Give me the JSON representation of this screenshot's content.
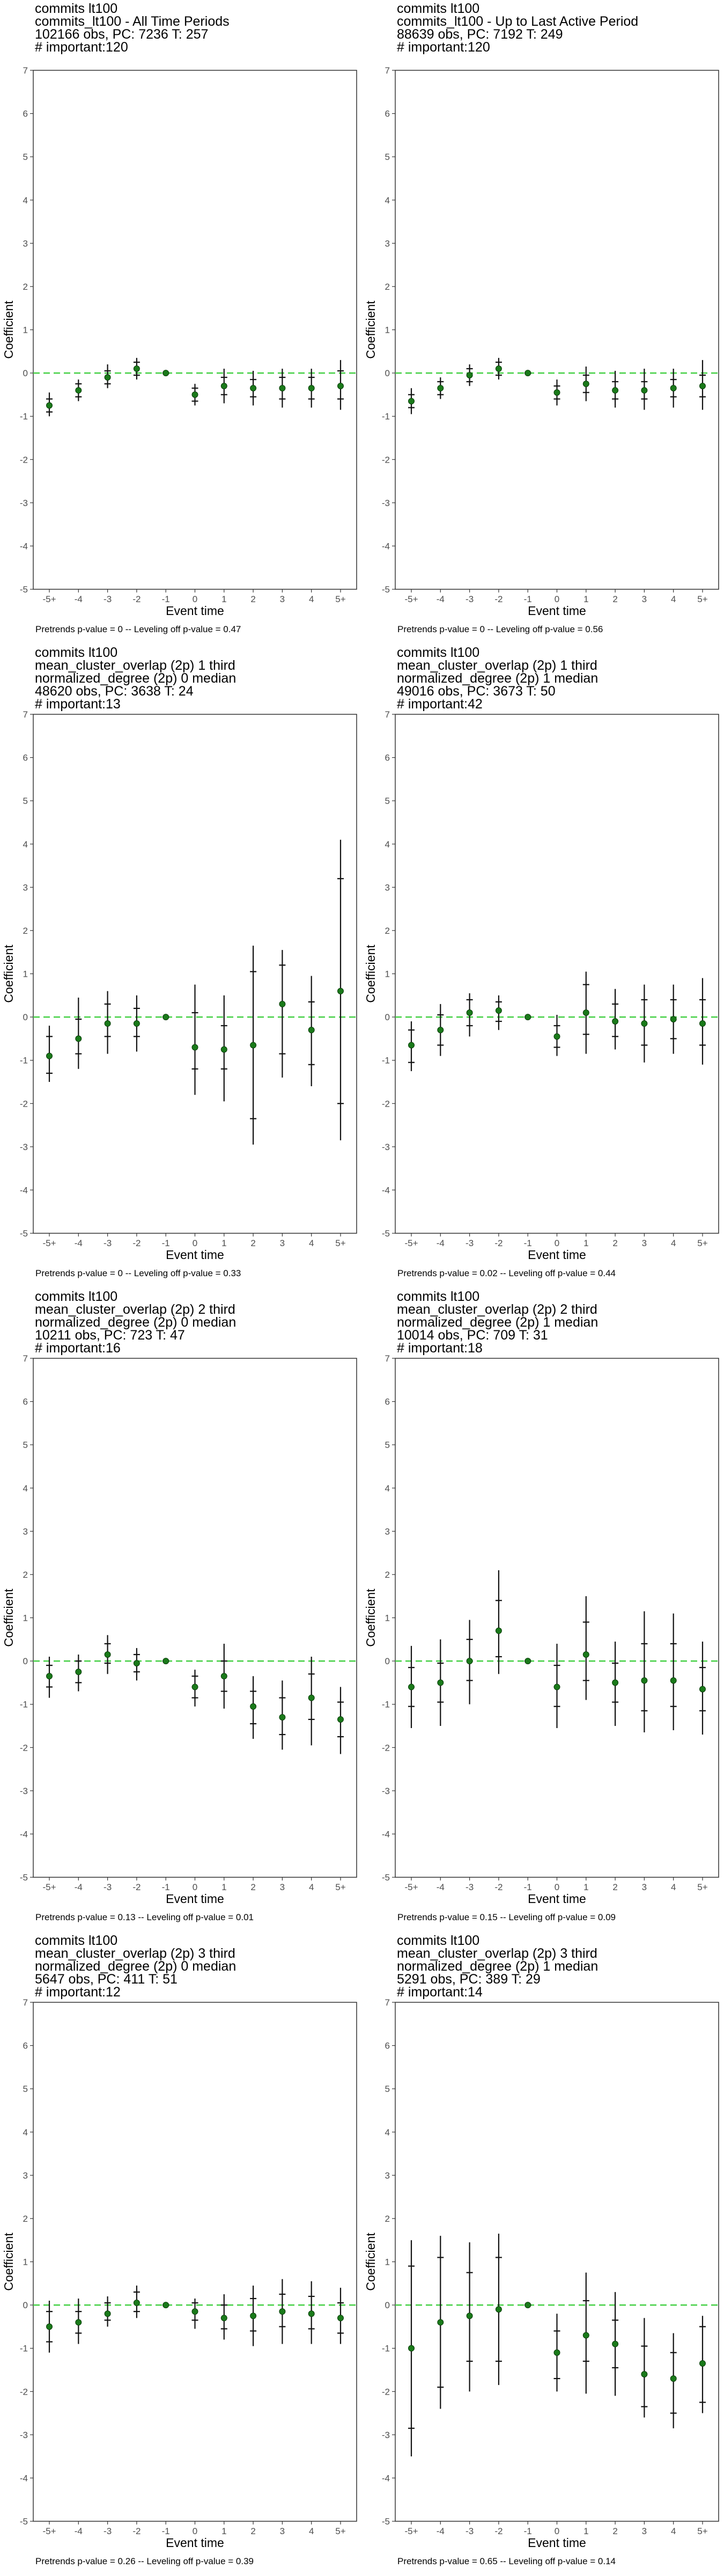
{
  "chart_data": [
    {
      "type": "scatter",
      "title_lines": [
        "commits lt100",
        "commits_lt100 - All Time Periods",
        "102166 obs, PC: 7236 T: 257",
        "# important:120"
      ],
      "xlabel": "Event time",
      "ylabel": "Coefficient",
      "categories": [
        "-5+",
        "-4",
        "-3",
        "-2",
        "-1",
        "0",
        "1",
        "2",
        "3",
        "4",
        "5+"
      ],
      "ylim": [
        -5,
        7
      ],
      "yticks": [
        "-5",
        "-4",
        "-3",
        "-2",
        "-1",
        "0",
        "1",
        "2",
        "3",
        "4",
        "5",
        "6",
        "7"
      ],
      "reference_line": 0,
      "estimates": [
        -0.75,
        -0.4,
        -0.1,
        0.1,
        0.0,
        -0.5,
        -0.3,
        -0.35,
        -0.35,
        -0.35,
        -0.3
      ],
      "ci_outer": [
        [
          -1.0,
          -0.45
        ],
        [
          -0.65,
          -0.15
        ],
        [
          -0.35,
          0.2
        ],
        [
          -0.15,
          0.35
        ],
        [
          0,
          0
        ],
        [
          -0.75,
          -0.25
        ],
        [
          -0.7,
          0.1
        ],
        [
          -0.75,
          0.05
        ],
        [
          -0.8,
          0.1
        ],
        [
          -0.8,
          0.1
        ],
        [
          -0.85,
          0.3
        ]
      ],
      "ci_inner": [
        [
          -0.9,
          -0.6
        ],
        [
          -0.55,
          -0.25
        ],
        [
          -0.25,
          0.05
        ],
        [
          -0.05,
          0.25
        ],
        [
          0,
          0
        ],
        [
          -0.65,
          -0.35
        ],
        [
          -0.5,
          -0.1
        ],
        [
          -0.55,
          -0.15
        ],
        [
          -0.6,
          -0.1
        ],
        [
          -0.6,
          -0.1
        ],
        [
          -0.6,
          0.05
        ]
      ],
      "footer": "Pretrends p-value = 0 -- Leveling off p-value = 0.47"
    },
    {
      "type": "scatter",
      "title_lines": [
        "commits lt100",
        "commits_lt100 - Up to Last Active Period",
        "88639 obs, PC: 7192 T: 249",
        "# important:120"
      ],
      "xlabel": "Event time",
      "ylabel": "Coefficient",
      "categories": [
        "-5+",
        "-4",
        "-3",
        "-2",
        "-1",
        "0",
        "1",
        "2",
        "3",
        "4",
        "5+"
      ],
      "ylim": [
        -5,
        7
      ],
      "yticks": [
        "-5",
        "-4",
        "-3",
        "-2",
        "-1",
        "0",
        "1",
        "2",
        "3",
        "4",
        "5",
        "6",
        "7"
      ],
      "reference_line": 0,
      "estimates": [
        -0.65,
        -0.35,
        -0.05,
        0.1,
        0.0,
        -0.45,
        -0.25,
        -0.4,
        -0.4,
        -0.35,
        -0.3
      ],
      "ci_outer": [
        [
          -0.95,
          -0.35
        ],
        [
          -0.6,
          -0.1
        ],
        [
          -0.3,
          0.2
        ],
        [
          -0.15,
          0.35
        ],
        [
          0,
          0
        ],
        [
          -0.75,
          -0.15
        ],
        [
          -0.65,
          0.15
        ],
        [
          -0.8,
          0.05
        ],
        [
          -0.85,
          0.1
        ],
        [
          -0.8,
          0.1
        ],
        [
          -0.85,
          0.3
        ]
      ],
      "ci_inner": [
        [
          -0.8,
          -0.5
        ],
        [
          -0.5,
          -0.2
        ],
        [
          -0.2,
          0.1
        ],
        [
          -0.05,
          0.25
        ],
        [
          0,
          0
        ],
        [
          -0.6,
          -0.3
        ],
        [
          -0.45,
          -0.05
        ],
        [
          -0.6,
          -0.2
        ],
        [
          -0.6,
          -0.2
        ],
        [
          -0.55,
          -0.15
        ],
        [
          -0.55,
          -0.05
        ]
      ],
      "footer": "Pretrends p-value = 0 -- Leveling off p-value = 0.56"
    },
    {
      "type": "scatter",
      "title_lines": [
        "commits lt100",
        "mean_cluster_overlap (2p) 1 third",
        "normalized_degree (2p) 0 median",
        "48620 obs, PC: 3638 T: 24",
        "# important:13"
      ],
      "xlabel": "Event time",
      "ylabel": "Coefficient",
      "categories": [
        "-5+",
        "-4",
        "-3",
        "-2",
        "-1",
        "0",
        "1",
        "2",
        "3",
        "4",
        "5+"
      ],
      "ylim": [
        -5,
        7
      ],
      "yticks": [
        "-5",
        "-4",
        "-3",
        "-2",
        "-1",
        "0",
        "1",
        "2",
        "3",
        "4",
        "5",
        "6",
        "7"
      ],
      "reference_line": 0,
      "estimates": [
        -0.9,
        -0.5,
        -0.15,
        -0.15,
        0.0,
        -0.7,
        -0.75,
        -0.65,
        0.3,
        -0.3,
        0.6
      ],
      "ci_outer": [
        [
          -1.5,
          -0.2
        ],
        [
          -1.2,
          0.45
        ],
        [
          -0.85,
          0.6
        ],
        [
          -0.8,
          0.5
        ],
        [
          0,
          0
        ],
        [
          -1.8,
          0.75
        ],
        [
          -1.95,
          0.5
        ],
        [
          -2.95,
          1.65
        ],
        [
          -1.4,
          1.55
        ],
        [
          -1.6,
          0.95
        ],
        [
          -2.85,
          4.1
        ]
      ],
      "ci_inner": [
        [
          -1.3,
          -0.45
        ],
        [
          -0.85,
          -0.05
        ],
        [
          -0.45,
          0.3
        ],
        [
          -0.45,
          0.2
        ],
        [
          0,
          0
        ],
        [
          -1.2,
          0.1
        ],
        [
          -1.2,
          -0.2
        ],
        [
          -2.35,
          1.05
        ],
        [
          -0.85,
          1.2
        ],
        [
          -1.1,
          0.35
        ],
        [
          -2.0,
          3.2
        ]
      ],
      "footer": "Pretrends p-value = 0 -- Leveling off p-value = 0.33"
    },
    {
      "type": "scatter",
      "title_lines": [
        "commits lt100",
        "mean_cluster_overlap (2p) 1 third",
        "normalized_degree (2p) 1 median",
        "49016 obs, PC: 3673 T: 50",
        "# important:42"
      ],
      "xlabel": "Event time",
      "ylabel": "Coefficient",
      "categories": [
        "-5+",
        "-4",
        "-3",
        "-2",
        "-1",
        "0",
        "1",
        "2",
        "3",
        "4",
        "5+"
      ],
      "ylim": [
        -5,
        7
      ],
      "yticks": [
        "-5",
        "-4",
        "-3",
        "-2",
        "-1",
        "0",
        "1",
        "2",
        "3",
        "4",
        "5",
        "6",
        "7"
      ],
      "reference_line": 0,
      "estimates": [
        -0.65,
        -0.3,
        0.1,
        0.15,
        0.0,
        -0.45,
        0.1,
        -0.1,
        -0.15,
        -0.05,
        -0.15
      ],
      "ci_outer": [
        [
          -1.25,
          -0.1
        ],
        [
          -0.9,
          0.3
        ],
        [
          -0.45,
          0.55
        ],
        [
          -0.3,
          0.5
        ],
        [
          0,
          0
        ],
        [
          -0.9,
          0.05
        ],
        [
          -0.85,
          1.05
        ],
        [
          -0.75,
          0.65
        ],
        [
          -1.05,
          0.75
        ],
        [
          -0.85,
          0.75
        ],
        [
          -1.1,
          0.9
        ]
      ],
      "ci_inner": [
        [
          -1.05,
          -0.3
        ],
        [
          -0.65,
          0.05
        ],
        [
          -0.2,
          0.4
        ],
        [
          -0.1,
          0.35
        ],
        [
          0,
          0
        ],
        [
          -0.7,
          -0.2
        ],
        [
          -0.4,
          0.75
        ],
        [
          -0.45,
          0.3
        ],
        [
          -0.65,
          0.4
        ],
        [
          -0.5,
          0.4
        ],
        [
          -0.65,
          0.4
        ]
      ],
      "footer": "Pretrends p-value = 0.02 -- Leveling off p-value = 0.44"
    },
    {
      "type": "scatter",
      "title_lines": [
        "commits lt100",
        "mean_cluster_overlap (2p) 2 third",
        "normalized_degree (2p) 0 median",
        "10211 obs, PC: 723 T: 47",
        "# important:16"
      ],
      "xlabel": "Event time",
      "ylabel": "Coefficient",
      "categories": [
        "-5+",
        "-4",
        "-3",
        "-2",
        "-1",
        "0",
        "1",
        "2",
        "3",
        "4",
        "5+"
      ],
      "ylim": [
        -5,
        7
      ],
      "yticks": [
        "-5",
        "-4",
        "-3",
        "-2",
        "-1",
        "0",
        "1",
        "2",
        "3",
        "4",
        "5",
        "6",
        "7"
      ],
      "reference_line": 0,
      "estimates": [
        -0.35,
        -0.25,
        0.15,
        -0.05,
        0.0,
        -0.6,
        -0.35,
        -1.05,
        -1.3,
        -0.85,
        -1.35
      ],
      "ci_outer": [
        [
          -0.85,
          0.1
        ],
        [
          -0.7,
          0.15
        ],
        [
          -0.3,
          0.6
        ],
        [
          -0.45,
          0.3
        ],
        [
          0,
          0
        ],
        [
          -1.05,
          -0.2
        ],
        [
          -1.1,
          0.4
        ],
        [
          -1.8,
          -0.35
        ],
        [
          -2.05,
          -0.45
        ],
        [
          -1.95,
          0.1
        ],
        [
          -2.15,
          -0.6
        ]
      ],
      "ci_inner": [
        [
          -0.6,
          -0.1
        ],
        [
          -0.5,
          0.0
        ],
        [
          -0.05,
          0.4
        ],
        [
          -0.25,
          0.15
        ],
        [
          0,
          0
        ],
        [
          -0.85,
          -0.35
        ],
        [
          -0.7,
          0.0
        ],
        [
          -1.45,
          -0.7
        ],
        [
          -1.7,
          -0.85
        ],
        [
          -1.35,
          -0.3
        ],
        [
          -1.75,
          -0.95
        ]
      ],
      "footer": "Pretrends p-value = 0.13 -- Leveling off p-value = 0.01"
    },
    {
      "type": "scatter",
      "title_lines": [
        "commits lt100",
        "mean_cluster_overlap (2p) 2 third",
        "normalized_degree (2p) 1 median",
        "10014 obs, PC: 709 T: 31",
        "# important:18"
      ],
      "xlabel": "Event time",
      "ylabel": "Coefficient",
      "categories": [
        "-5+",
        "-4",
        "-3",
        "-2",
        "-1",
        "0",
        "1",
        "2",
        "3",
        "4",
        "5+"
      ],
      "ylim": [
        -5,
        7
      ],
      "yticks": [
        "-5",
        "-4",
        "-3",
        "-2",
        "-1",
        "0",
        "1",
        "2",
        "3",
        "4",
        "5",
        "6",
        "7"
      ],
      "reference_line": 0,
      "estimates": [
        -0.6,
        -0.5,
        0.0,
        0.7,
        0.0,
        -0.6,
        0.15,
        -0.5,
        -0.45,
        -0.45,
        -0.65
      ],
      "ci_outer": [
        [
          -1.55,
          0.35
        ],
        [
          -1.5,
          0.5
        ],
        [
          -1.0,
          0.95
        ],
        [
          -0.3,
          2.1
        ],
        [
          0,
          0
        ],
        [
          -1.55,
          0.4
        ],
        [
          -0.9,
          1.5
        ],
        [
          -1.5,
          0.45
        ],
        [
          -1.65,
          1.15
        ],
        [
          -1.6,
          1.1
        ],
        [
          -1.7,
          0.45
        ]
      ],
      "ci_inner": [
        [
          -1.05,
          -0.15
        ],
        [
          -0.95,
          -0.05
        ],
        [
          -0.45,
          0.5
        ],
        [
          0.1,
          1.4
        ],
        [
          0,
          0
        ],
        [
          -1.05,
          -0.1
        ],
        [
          -0.45,
          0.9
        ],
        [
          -0.95,
          -0.05
        ],
        [
          -1.15,
          0.4
        ],
        [
          -1.05,
          0.4
        ],
        [
          -1.15,
          -0.15
        ]
      ],
      "footer": "Pretrends p-value = 0.15 -- Leveling off p-value = 0.09"
    },
    {
      "type": "scatter",
      "title_lines": [
        "commits lt100",
        "mean_cluster_overlap (2p) 3 third",
        "normalized_degree (2p) 0 median",
        "5647 obs, PC: 411 T: 51",
        "# important:12"
      ],
      "xlabel": "Event time",
      "ylabel": "Coefficient",
      "categories": [
        "-5+",
        "-4",
        "-3",
        "-2",
        "-1",
        "0",
        "1",
        "2",
        "3",
        "4",
        "5+"
      ],
      "ylim": [
        -5,
        7
      ],
      "yticks": [
        "-5",
        "-4",
        "-3",
        "-2",
        "-1",
        "0",
        "1",
        "2",
        "3",
        "4",
        "5",
        "6",
        "7"
      ],
      "reference_line": 0,
      "estimates": [
        -0.5,
        -0.4,
        -0.2,
        0.05,
        0.0,
        -0.15,
        -0.3,
        -0.25,
        -0.15,
        -0.2,
        -0.3
      ],
      "ci_outer": [
        [
          -1.1,
          0.1
        ],
        [
          -0.9,
          0.15
        ],
        [
          -0.5,
          0.2
        ],
        [
          -0.3,
          0.45
        ],
        [
          0,
          0
        ],
        [
          -0.55,
          0.15
        ],
        [
          -0.8,
          0.25
        ],
        [
          -0.95,
          0.45
        ],
        [
          -0.9,
          0.6
        ],
        [
          -0.9,
          0.55
        ],
        [
          -0.9,
          0.4
        ]
      ],
      "ci_inner": [
        [
          -0.85,
          -0.15
        ],
        [
          -0.65,
          -0.15
        ],
        [
          -0.35,
          0.05
        ],
        [
          -0.15,
          0.3
        ],
        [
          0,
          0
        ],
        [
          -0.35,
          0.05
        ],
        [
          -0.55,
          0.0
        ],
        [
          -0.6,
          0.15
        ],
        [
          -0.5,
          0.25
        ],
        [
          -0.55,
          0.2
        ],
        [
          -0.65,
          0.05
        ]
      ],
      "footer": "Pretrends p-value = 0.26 -- Leveling off p-value = 0.39"
    },
    {
      "type": "scatter",
      "title_lines": [
        "commits lt100",
        "mean_cluster_overlap (2p) 3 third",
        "normalized_degree (2p) 1 median",
        "5291 obs, PC: 389 T: 29",
        "# important:14"
      ],
      "xlabel": "Event time",
      "ylabel": "Coefficient",
      "categories": [
        "-5+",
        "-4",
        "-3",
        "-2",
        "-1",
        "0",
        "1",
        "2",
        "3",
        "4",
        "5+"
      ],
      "ylim": [
        -5,
        7
      ],
      "yticks": [
        "-5",
        "-4",
        "-3",
        "-2",
        "-1",
        "0",
        "1",
        "2",
        "3",
        "4",
        "5",
        "6",
        "7"
      ],
      "reference_line": 0,
      "estimates": [
        -1.0,
        -0.4,
        -0.25,
        -0.1,
        0.0,
        -1.1,
        -0.7,
        -0.9,
        -1.6,
        -1.7,
        -1.35
      ],
      "ci_outer": [
        [
          -3.5,
          1.5
        ],
        [
          -2.4,
          1.6
        ],
        [
          -2.0,
          1.45
        ],
        [
          -1.85,
          1.65
        ],
        [
          0,
          0
        ],
        [
          -2.0,
          -0.2
        ],
        [
          -2.05,
          0.75
        ],
        [
          -2.1,
          0.3
        ],
        [
          -2.6,
          -0.3
        ],
        [
          -2.85,
          -0.65
        ],
        [
          -2.5,
          -0.25
        ]
      ],
      "ci_inner": [
        [
          -2.85,
          0.9
        ],
        [
          -1.9,
          1.1
        ],
        [
          -1.3,
          0.75
        ],
        [
          -1.3,
          1.1
        ],
        [
          0,
          0
        ],
        [
          -1.7,
          -0.6
        ],
        [
          -1.3,
          0.1
        ],
        [
          -1.45,
          -0.35
        ],
        [
          -2.35,
          -0.95
        ],
        [
          -2.5,
          -1.1
        ],
        [
          -2.25,
          -0.5
        ]
      ],
      "footer": "Pretrends p-value = 0.65 -- Leveling off p-value = 0.14"
    }
  ]
}
